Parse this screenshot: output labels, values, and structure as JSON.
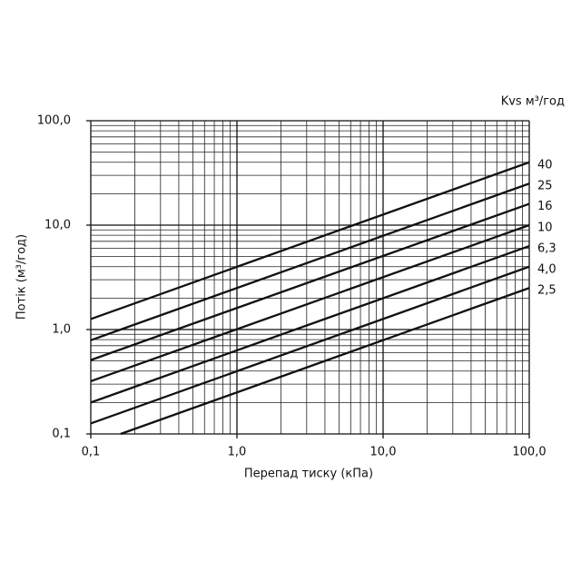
{
  "chart_data": {
    "type": "line",
    "log_x": true,
    "log_y": true,
    "grid": true,
    "legend_title": "Kvs м³/год",
    "y_label": "Потік (м³/год)",
    "x_label": "Перепад тиску (кПа)",
    "xlim": [
      0.1,
      100
    ],
    "ylim": [
      0.1,
      100
    ],
    "xticks": [
      {
        "value": 0.1,
        "label": "0,1"
      },
      {
        "value": 1,
        "label": "1,0"
      },
      {
        "value": 10,
        "label": "10,0"
      },
      {
        "value": 100,
        "label": "100,0"
      }
    ],
    "yticks": [
      {
        "value": 0.1,
        "label": "0,1"
      },
      {
        "value": 1,
        "label": "1,0"
      },
      {
        "value": 10,
        "label": "10,0"
      },
      {
        "value": 100,
        "label": "100,0"
      }
    ],
    "xminorticks": [
      0.2,
      0.3,
      0.4,
      0.5,
      0.6,
      0.7,
      0.8,
      0.9,
      2,
      3,
      4,
      5,
      6,
      7,
      8,
      9,
      20,
      30,
      40,
      50,
      60,
      70,
      80,
      90
    ],
    "yminorticks": [
      0.2,
      0.3,
      0.4,
      0.5,
      0.6,
      0.7,
      0.8,
      0.9,
      2,
      3,
      4,
      5,
      6,
      7,
      8,
      9,
      20,
      30,
      40,
      50,
      60,
      70,
      80,
      90
    ],
    "series": [
      {
        "name": "40",
        "color": "#111111",
        "x": [
          0.1,
          100
        ],
        "values": [
          1.26,
          40
        ]
      },
      {
        "name": "25",
        "color": "#111111",
        "x": [
          0.1,
          100
        ],
        "values": [
          0.79,
          25
        ]
      },
      {
        "name": "16",
        "color": "#111111",
        "x": [
          0.1,
          100
        ],
        "values": [
          0.51,
          16
        ]
      },
      {
        "name": "10",
        "color": "#111111",
        "x": [
          0.1,
          100
        ],
        "values": [
          0.32,
          10
        ]
      },
      {
        "name": "6,3",
        "color": "#111111",
        "x": [
          0.1,
          100
        ],
        "values": [
          0.2,
          6.3
        ]
      },
      {
        "name": "4,0",
        "color": "#111111",
        "x": [
          0.1,
          100
        ],
        "values": [
          0.126,
          4.0
        ]
      },
      {
        "name": "2,5",
        "color": "#111111",
        "x": [
          0.16,
          100
        ],
        "values": [
          0.1,
          2.5
        ]
      }
    ]
  }
}
